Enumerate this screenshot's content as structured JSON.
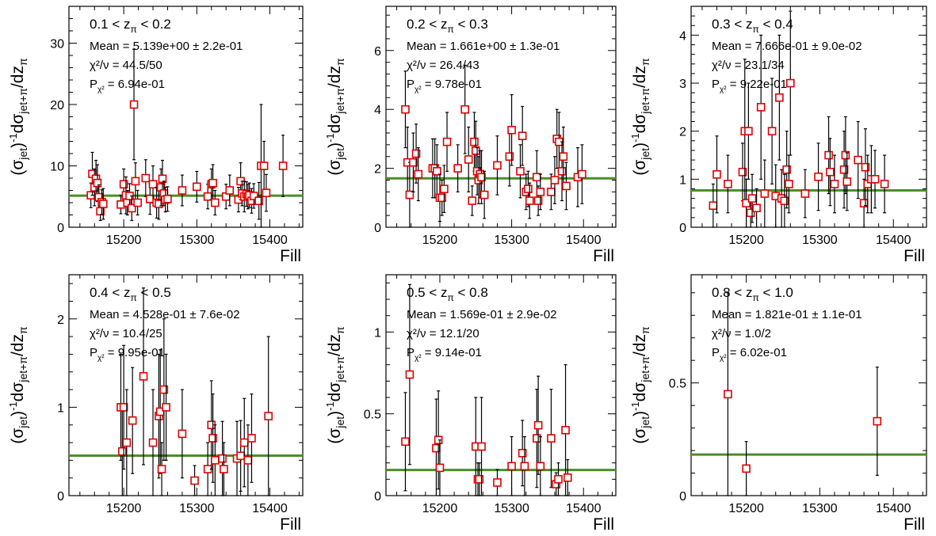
{
  "common": {
    "xlabel": "Fill",
    "ylabel_parts": [
      "(σ",
      "jet",
      ")",
      "-1",
      "dσ",
      "jet+π",
      "/dz",
      "π"
    ],
    "stat_labels": {
      "mean": "Mean = ",
      "pm": " ± ",
      "chi2": "χ²/ν = ",
      "prob": "P",
      "prob_sub": "χ²",
      "prob_eq": " = "
    },
    "colors": {
      "marker": "#e00000",
      "fit_line": "#4a8f28",
      "error_bar": "#000000",
      "frame": "#000000"
    }
  },
  "chart_data": [
    {
      "type": "scatter",
      "range_label": {
        "lo": "0.1",
        "hi": "0.2",
        "var": "z",
        "sub": "π"
      },
      "mean": "5.139e+00",
      "mean_err": "2.2e-01",
      "chi2": "44.5/50",
      "prob": "6.94e-01",
      "fit_value": 5.139,
      "xlim": [
        15125,
        15445
      ],
      "xticks": [
        15200,
        15300,
        15400
      ],
      "ylim": [
        0,
        36
      ],
      "yticks": [
        0,
        10,
        20,
        30
      ],
      "points": [
        [
          15155,
          5.2,
          2.0
        ],
        [
          15157,
          8.7,
          3.5
        ],
        [
          15160,
          6.5,
          3.0
        ],
        [
          15162,
          7.9,
          3.0
        ],
        [
          15164,
          7.2,
          3.0
        ],
        [
          15166,
          4.9,
          2.0
        ],
        [
          15168,
          2.6,
          1.5
        ],
        [
          15170,
          4.1,
          2.0
        ],
        [
          15172,
          3.8,
          2.5
        ],
        [
          15196,
          3.7,
          1.5
        ],
        [
          15200,
          7.0,
          2.5
        ],
        [
          15203,
          5.2,
          3.0
        ],
        [
          15205,
          4.0,
          2.0
        ],
        [
          15208,
          5.1,
          2.0
        ],
        [
          15211,
          3.1,
          2.0
        ],
        [
          15214,
          20.0,
          9.0
        ],
        [
          15216,
          7.5,
          3.0
        ],
        [
          15219,
          4.0,
          2.0
        ],
        [
          15230,
          8.0,
          3.0
        ],
        [
          15236,
          4.6,
          2.5
        ],
        [
          15240,
          7.0,
          3.0
        ],
        [
          15245,
          4.0,
          2.5
        ],
        [
          15248,
          3.8,
          2.5
        ],
        [
          15251,
          6.5,
          3.0
        ],
        [
          15253,
          7.9,
          3.0
        ],
        [
          15255,
          5.5,
          2.0
        ],
        [
          15257,
          4.5,
          2.0
        ],
        [
          15260,
          4.6,
          2.0
        ],
        [
          15280,
          6.0,
          2.5
        ],
        [
          15300,
          6.6,
          2.5
        ],
        [
          15315,
          5.0,
          2.0
        ],
        [
          15320,
          7.0,
          2.5
        ],
        [
          15322,
          7.2,
          3.0
        ],
        [
          15325,
          4.0,
          2.0
        ],
        [
          15340,
          5.0,
          2.0
        ],
        [
          15345,
          6.0,
          2.5
        ],
        [
          15357,
          4.5,
          2.0
        ],
        [
          15360,
          7.5,
          3.0
        ],
        [
          15362,
          5.5,
          2.0
        ],
        [
          15365,
          5.0,
          2.5
        ],
        [
          15368,
          5.4,
          2.0
        ],
        [
          15370,
          5.0,
          2.0
        ],
        [
          15372,
          5.2,
          2.0
        ],
        [
          15375,
          4.3,
          2.0
        ],
        [
          15378,
          5.1,
          2.0
        ],
        [
          15385,
          4.3,
          3.0
        ],
        [
          15388,
          10.0,
          10.0
        ],
        [
          15392,
          10.0,
          4.0
        ],
        [
          15395,
          5.6,
          3.0
        ],
        [
          15418,
          10.0,
          5.0
        ]
      ]
    },
    {
      "type": "scatter",
      "range_label": {
        "lo": "0.2",
        "hi": "0.3",
        "var": "z",
        "sub": "π"
      },
      "mean": "1.661e+00",
      "mean_err": "1.3e-01",
      "chi2": "26.4/43",
      "prob": "9.78e-01",
      "fit_value": 1.661,
      "xlim": [
        15125,
        15445
      ],
      "xticks": [
        15200,
        15300,
        15400
      ],
      "ylim": [
        0,
        7.5
      ],
      "yticks": [
        0,
        2,
        4,
        6
      ],
      "points": [
        [
          15152,
          4.0,
          1.3
        ],
        [
          15155,
          2.2,
          1.2
        ],
        [
          15158,
          1.1,
          1.1
        ],
        [
          15163,
          2.2,
          1.0
        ],
        [
          15167,
          2.5,
          1.0
        ],
        [
          15170,
          1.8,
          0.9
        ],
        [
          15190,
          2.0,
          1.0
        ],
        [
          15193,
          2.0,
          1.0
        ],
        [
          15196,
          1.9,
          0.9
        ],
        [
          15200,
          1.0,
          0.8
        ],
        [
          15203,
          1.0,
          0.6
        ],
        [
          15206,
          1.3,
          0.8
        ],
        [
          15210,
          2.9,
          1.0
        ],
        [
          15225,
          2.0,
          0.8
        ],
        [
          15235,
          4.0,
          1.5
        ],
        [
          15240,
          2.3,
          1.1
        ],
        [
          15245,
          0.9,
          0.5
        ],
        [
          15248,
          2.9,
          1.0
        ],
        [
          15250,
          2.6,
          1.0
        ],
        [
          15252,
          1.9,
          0.8
        ],
        [
          15254,
          1.6,
          0.8
        ],
        [
          15256,
          1.8,
          0.8
        ],
        [
          15258,
          1.7,
          0.9
        ],
        [
          15262,
          1.1,
          0.8
        ],
        [
          15280,
          2.1,
          1.0
        ],
        [
          15297,
          2.4,
          1.0
        ],
        [
          15300,
          3.3,
          1.2
        ],
        [
          15312,
          1.9,
          0.9
        ],
        [
          15315,
          3.1,
          1.0
        ],
        [
          15320,
          1.2,
          0.6
        ],
        [
          15323,
          1.3,
          0.6
        ],
        [
          15325,
          0.9,
          0.6
        ],
        [
          15335,
          1.7,
          0.9
        ],
        [
          15337,
          0.9,
          0.5
        ],
        [
          15340,
          1.2,
          0.6
        ],
        [
          15355,
          1.2,
          0.6
        ],
        [
          15360,
          1.6,
          0.8
        ],
        [
          15363,
          3.0,
          1.0
        ],
        [
          15366,
          2.9,
          1.0
        ],
        [
          15370,
          1.9,
          1.0
        ],
        [
          15372,
          2.4,
          1.0
        ],
        [
          15376,
          1.4,
          0.8
        ],
        [
          15392,
          1.7,
          1.0
        ],
        [
          15398,
          1.8,
          1.0
        ]
      ]
    },
    {
      "type": "scatter",
      "range_label": {
        "lo": "0.3",
        "hi": "0.4",
        "var": "z",
        "sub": "π"
      },
      "mean": "7.666e-01",
      "mean_err": "9.0e-02",
      "chi2": "23.1/34",
      "prob": "9.22e-01",
      "fit_value": 0.7666,
      "xlim": [
        15125,
        15445
      ],
      "xticks": [
        15200,
        15300,
        15400
      ],
      "ylim": [
        0,
        4.6
      ],
      "yticks": [
        0,
        1,
        2,
        3,
        4
      ],
      "points": [
        [
          15155,
          0.45,
          0.45
        ],
        [
          15160,
          1.1,
          0.8
        ],
        [
          15175,
          0.9,
          0.6
        ],
        [
          15195,
          1.15,
          0.6
        ],
        [
          15198,
          2.0,
          1.5
        ],
        [
          15200,
          0.5,
          0.5
        ],
        [
          15203,
          2.0,
          1.0
        ],
        [
          15206,
          0.3,
          0.3
        ],
        [
          15208,
          0.6,
          0.5
        ],
        [
          15214,
          0.4,
          0.4
        ],
        [
          15220,
          2.5,
          1.5
        ],
        [
          15225,
          0.7,
          0.7
        ],
        [
          15235,
          2.0,
          1.1
        ],
        [
          15240,
          0.65,
          0.65
        ],
        [
          15245,
          2.7,
          1.3
        ],
        [
          15248,
          0.6,
          0.6
        ],
        [
          15252,
          0.55,
          0.55
        ],
        [
          15255,
          1.2,
          0.8
        ],
        [
          15258,
          0.9,
          0.6
        ],
        [
          15260,
          3.0,
          1.5
        ],
        [
          15280,
          0.7,
          0.5
        ],
        [
          15298,
          1.05,
          0.7
        ],
        [
          15312,
          1.5,
          0.8
        ],
        [
          15314,
          1.15,
          0.7
        ],
        [
          15320,
          0.9,
          0.6
        ],
        [
          15333,
          1.2,
          0.8
        ],
        [
          15335,
          1.5,
          0.8
        ],
        [
          15337,
          0.95,
          0.6
        ],
        [
          15352,
          1.4,
          0.8
        ],
        [
          15360,
          0.5,
          0.5
        ],
        [
          15362,
          1.25,
          0.8
        ],
        [
          15365,
          0.9,
          0.6
        ],
        [
          15370,
          1.0,
          0.7
        ],
        [
          15375,
          1.0,
          0.6
        ],
        [
          15388,
          0.9,
          0.6
        ]
      ]
    },
    {
      "type": "scatter",
      "range_label": {
        "lo": "0.4",
        "hi": "0.5",
        "var": "z",
        "sub": "π"
      },
      "mean": "4.528e-01",
      "mean_err": "7.6e-02",
      "chi2": "10.4/25",
      "prob": "9.95e-01",
      "fit_value": 0.4528,
      "xlim": [
        15125,
        15445
      ],
      "xticks": [
        15200,
        15300,
        15400
      ],
      "ylim": [
        0,
        2.5
      ],
      "yticks": [
        0,
        1,
        2
      ],
      "points": [
        [
          15196,
          1.0,
          0.6
        ],
        [
          15198,
          0.5,
          0.5
        ],
        [
          15200,
          1.0,
          0.7
        ],
        [
          15204,
          0.6,
          0.6
        ],
        [
          15212,
          0.85,
          0.6
        ],
        [
          15227,
          1.35,
          1.0
        ],
        [
          15240,
          0.6,
          0.6
        ],
        [
          15248,
          0.9,
          0.7
        ],
        [
          15250,
          0.95,
          0.7
        ],
        [
          15252,
          0.3,
          0.3
        ],
        [
          15255,
          1.2,
          0.8
        ],
        [
          15258,
          1.0,
          0.6
        ],
        [
          15280,
          0.7,
          0.5
        ],
        [
          15297,
          0.17,
          0.17
        ],
        [
          15315,
          0.3,
          0.3
        ],
        [
          15320,
          0.8,
          0.5
        ],
        [
          15322,
          0.65,
          0.5
        ],
        [
          15325,
          0.4,
          0.4
        ],
        [
          15335,
          0.42,
          0.42
        ],
        [
          15337,
          0.3,
          0.3
        ],
        [
          15355,
          0.42,
          0.42
        ],
        [
          15360,
          0.45,
          0.4
        ],
        [
          15365,
          0.6,
          0.5
        ],
        [
          15370,
          0.4,
          0.4
        ],
        [
          15375,
          0.65,
          0.5
        ],
        [
          15398,
          0.9,
          0.9
        ]
      ]
    },
    {
      "type": "scatter",
      "range_label": {
        "lo": "0.5",
        "hi": "0.8",
        "var": "z",
        "sub": "π"
      },
      "mean": "1.569e-01",
      "mean_err": "2.9e-02",
      "chi2": "12.1/20",
      "prob": "9.14e-01",
      "fit_value": 0.1569,
      "xlim": [
        15125,
        15445
      ],
      "xticks": [
        15200,
        15300,
        15400
      ],
      "ylim": [
        0,
        1.35
      ],
      "yticks": [
        0,
        0.5,
        1
      ],
      "points": [
        [
          15152,
          0.33,
          0.3
        ],
        [
          15158,
          0.74,
          0.55
        ],
        [
          15195,
          0.29,
          0.3
        ],
        [
          15198,
          0.34,
          0.3
        ],
        [
          15200,
          0.17,
          0.17
        ],
        [
          15250,
          0.3,
          0.3
        ],
        [
          15253,
          0.1,
          0.1
        ],
        [
          15255,
          0.1,
          0.1
        ],
        [
          15258,
          0.3,
          0.3
        ],
        [
          15280,
          0.08,
          0.08
        ],
        [
          15300,
          0.18,
          0.18
        ],
        [
          15315,
          0.26,
          0.2
        ],
        [
          15318,
          0.18,
          0.18
        ],
        [
          15335,
          0.35,
          0.3
        ],
        [
          15337,
          0.43,
          0.3
        ],
        [
          15340,
          0.18,
          0.18
        ],
        [
          15355,
          0.35,
          0.3
        ],
        [
          15362,
          0.07,
          0.07
        ],
        [
          15365,
          0.1,
          0.1
        ],
        [
          15375,
          0.4,
          0.4
        ],
        [
          15378,
          0.11,
          0.11
        ]
      ]
    },
    {
      "type": "scatter",
      "range_label": {
        "lo": "0.8",
        "hi": "1.0",
        "var": "z",
        "sub": "π"
      },
      "mean": "1.821e-01",
      "mean_err": "1.1e-01",
      "chi2": "1.0/2",
      "prob": "6.02e-01",
      "fit_value": 0.1821,
      "xlim": [
        15125,
        15445
      ],
      "xticks": [
        15200,
        15300,
        15400
      ],
      "ylim": [
        0,
        0.98
      ],
      "yticks": [
        0,
        0.5
      ],
      "points": [
        [
          15175,
          0.45,
          0.45
        ],
        [
          15200,
          0.12,
          0.12
        ],
        [
          15378,
          0.33,
          0.24
        ]
      ]
    }
  ]
}
